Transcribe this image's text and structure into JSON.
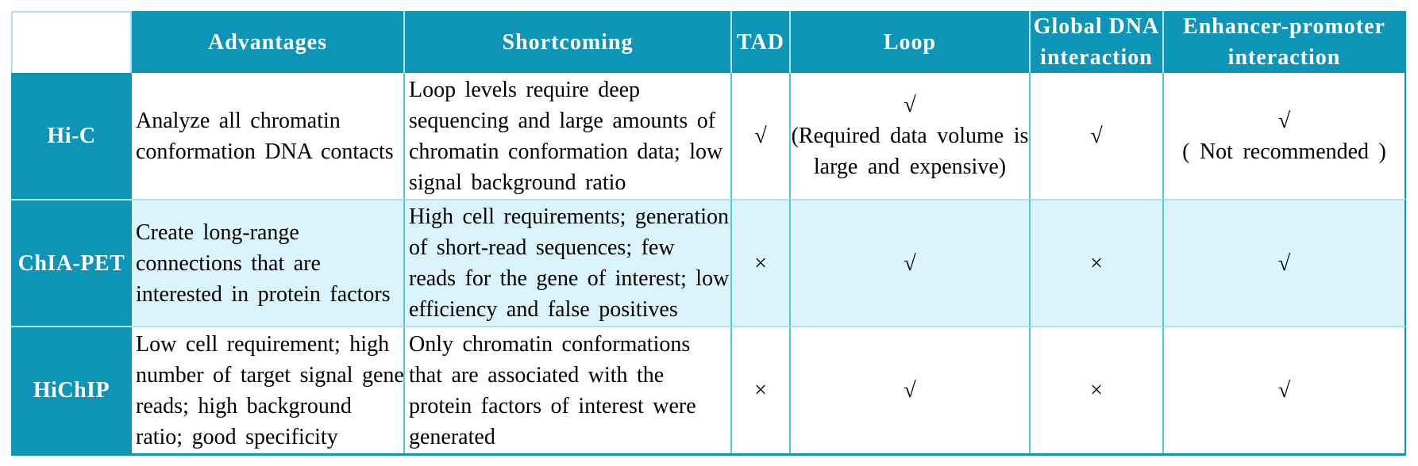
{
  "colors": {
    "header_teal": "#0d94b6",
    "alt_row_cyan": "#dbf3fb",
    "grid_line_cyan": "#4fc8e4",
    "grid_line_light": "#a9e4f2",
    "header_text": "#ffffff",
    "body_text": "#000000"
  },
  "header": {
    "corner": "",
    "advantages": "Advantages",
    "shortcoming": "Shortcoming",
    "tad": "TAD",
    "loop": "Loop",
    "global_dna": "Global DNA\ninteraction",
    "enhancer_promoter": "Enhancer-promoter\ninteraction"
  },
  "rows": [
    {
      "label": "Hi-C",
      "advantages": "Analyze all chromatin\nconformation DNA contacts",
      "shortcoming": "Loop levels require deep\nsequencing and large amounts of\nchromatin conformation data; low\nsignal background ratio",
      "tad": "√",
      "loop": "√\n(Required data volume is\nlarge and expensive)",
      "global_dna": "√",
      "enhancer_promoter": "√\n( Not recommended )"
    },
    {
      "label": "ChIA-PET",
      "advantages": "Create long-range\nconnections that are\ninterested in protein factors",
      "shortcoming": "High cell requirements; generation\nof short-read sequences; few\nreads for the gene of interest; low\nefficiency and false positives",
      "tad": "×",
      "loop": "√",
      "global_dna": "×",
      "enhancer_promoter": "√"
    },
    {
      "label": "HiChIP",
      "advantages": "Low cell requirement; high\nnumber of target signal gene\nreads; high background\nratio; good specificity",
      "shortcoming": "Only chromatin conformations\nthat are associated with the\nprotein factors of interest were\ngenerated",
      "tad": "×",
      "loop": "√",
      "global_dna": "×",
      "enhancer_promoter": "√"
    }
  ]
}
